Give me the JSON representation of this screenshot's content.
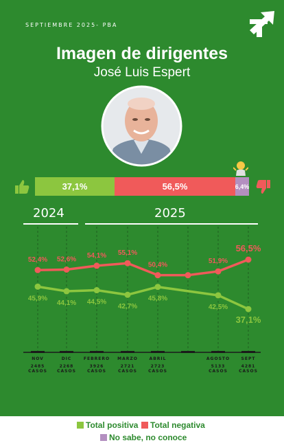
{
  "header": {
    "period": "SEPTIEMBRE 2025- PBA"
  },
  "title": "Imagen de dirigentes",
  "subtitle": "José Luis Espert",
  "summary": {
    "positive": {
      "label": "37,1%",
      "value": 37.1
    },
    "negative": {
      "label": "56,5%",
      "value": 56.5
    },
    "unknown": {
      "label": "6,4%",
      "value": 6.4
    }
  },
  "years": {
    "first": "2024",
    "second": "2025"
  },
  "colors": {
    "positive": "#8cc63f",
    "negative": "#f05a5a",
    "unknown": "#b38fc0",
    "background": "#2d8a2e"
  },
  "chart_data": {
    "type": "line",
    "categories": [
      "NOV",
      "DIC",
      "FEBRERO",
      "MARZO",
      "ABRIL",
      "",
      "AGOSTO",
      "SEPT"
    ],
    "cases": [
      "2485 CASOS",
      "2268 CASOS",
      "3926 CASOS",
      "2721 CASOS",
      "2723 CASOS",
      "",
      "5133 CASOS",
      "4281 CASOS"
    ],
    "series": [
      {
        "name": "Total negativa",
        "values": [
          52.4,
          52.6,
          54.1,
          55.1,
          50.4,
          50.4,
          51.9,
          56.5
        ],
        "labels": [
          "52,4%",
          "52,6%",
          "54,1%",
          "55,1%",
          "50,4%",
          "",
          "51,9%",
          "56,5%"
        ]
      },
      {
        "name": "Total positiva",
        "values": [
          45.9,
          44.1,
          44.5,
          42.7,
          45.8,
          null,
          42.5,
          37.1
        ],
        "labels": [
          "45,9%",
          "44,1%",
          "44,5%",
          "42,7%",
          "45,8%",
          "",
          "42,5%",
          "37,1%"
        ]
      }
    ]
  },
  "legend": {
    "positive": "Total positiva",
    "negative": "Total negativa",
    "unknown": "No sabe, no conoce"
  }
}
